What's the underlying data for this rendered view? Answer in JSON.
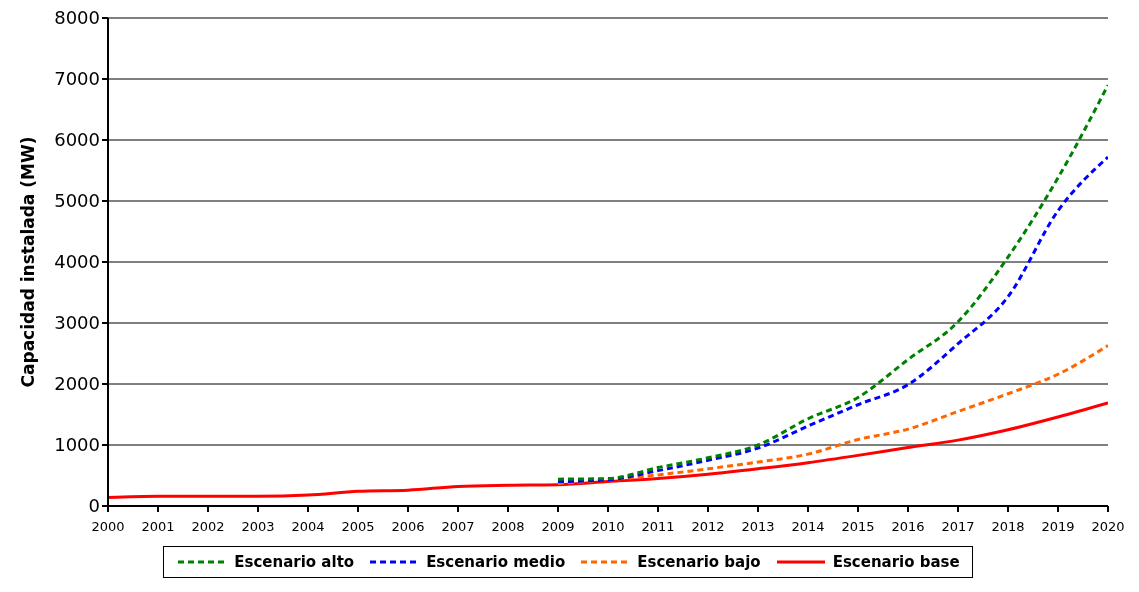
{
  "chart_data": {
    "type": "line",
    "ylabel": "Capacidad instalada (MW)",
    "x": [
      2000,
      2001,
      2002,
      2003,
      2004,
      2005,
      2006,
      2007,
      2008,
      2009,
      2010,
      2011,
      2012,
      2013,
      2014,
      2015,
      2016,
      2017,
      2018,
      2019,
      2020
    ],
    "xlim": [
      2000,
      2020
    ],
    "xticks": [
      2000,
      2001,
      2002,
      2003,
      2004,
      2005,
      2006,
      2007,
      2008,
      2009,
      2010,
      2011,
      2012,
      2013,
      2014,
      2015,
      2016,
      2017,
      2018,
      2019,
      2020
    ],
    "ylim": [
      0,
      8000
    ],
    "yticks": [
      0,
      1000,
      2000,
      3000,
      4000,
      5000,
      6000,
      7000,
      8000
    ],
    "grid": "y",
    "legend": "bottom",
    "marker": "none",
    "series": [
      {
        "name": "Escenario alto",
        "color": "#008000",
        "line_style": "dashed",
        "values": [
          null,
          null,
          null,
          null,
          null,
          null,
          null,
          null,
          null,
          440,
          450,
          630,
          790,
          1000,
          1430,
          1780,
          2400,
          3020,
          4080,
          5380,
          6900
        ]
      },
      {
        "name": "Escenario medio",
        "color": "#0000ff",
        "line_style": "dashed",
        "values": [
          null,
          null,
          null,
          null,
          null,
          null,
          null,
          null,
          null,
          400,
          430,
          580,
          750,
          950,
          1310,
          1660,
          1990,
          2660,
          3430,
          4840,
          5720
        ]
      },
      {
        "name": "Escenario bajo",
        "color": "#ff6600",
        "line_style": "dashed",
        "values": [
          null,
          null,
          null,
          null,
          null,
          null,
          null,
          null,
          null,
          370,
          430,
          510,
          610,
          720,
          850,
          1090,
          1260,
          1550,
          1840,
          2160,
          2630
        ]
      },
      {
        "name": "Escenario base",
        "color": "#ff0000",
        "line_style": "solid",
        "values": [
          140,
          160,
          160,
          160,
          180,
          240,
          260,
          320,
          340,
          350,
          400,
          450,
          520,
          610,
          710,
          830,
          960,
          1080,
          1250,
          1460,
          1690
        ]
      }
    ]
  }
}
